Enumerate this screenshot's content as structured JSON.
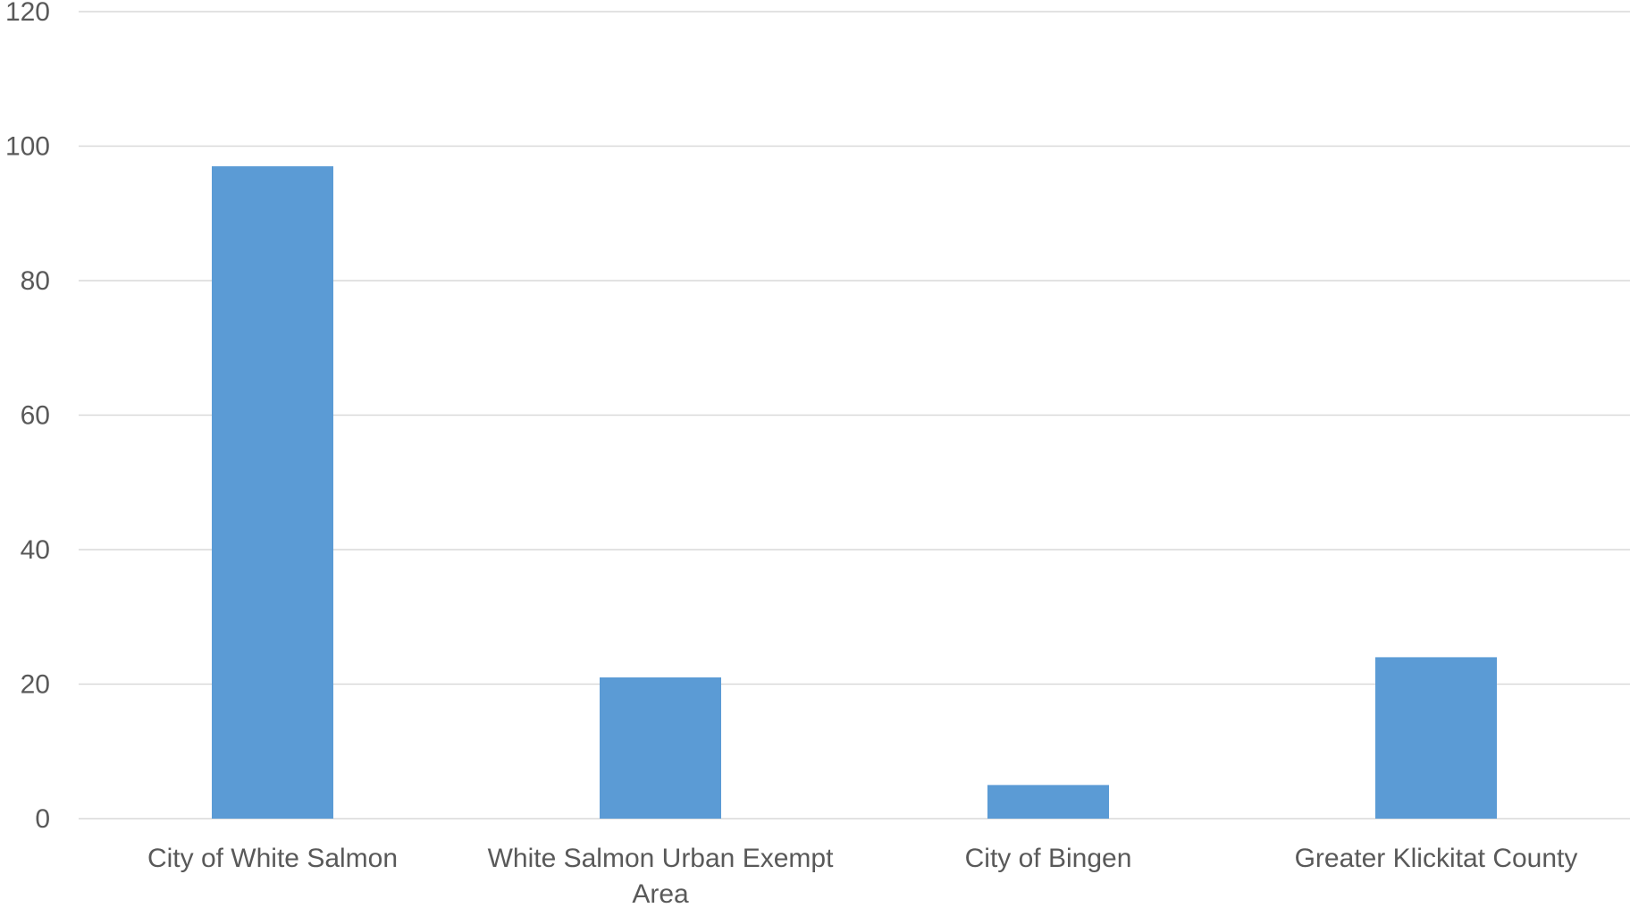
{
  "chart_data": {
    "type": "bar",
    "categories": [
      "City of White Salmon",
      "White Salmon Urban Exempt Area",
      "City of Bingen",
      "Greater Klickitat County"
    ],
    "values": [
      97,
      21,
      5,
      24
    ],
    "ylim": [
      0,
      120
    ],
    "yticks": [
      0,
      20,
      40,
      60,
      80,
      100,
      120
    ],
    "grid": true,
    "legend": "none",
    "bar_color": "#5b9bd5",
    "grid_color": "#d9d9d9",
    "label_color": "#595959"
  }
}
